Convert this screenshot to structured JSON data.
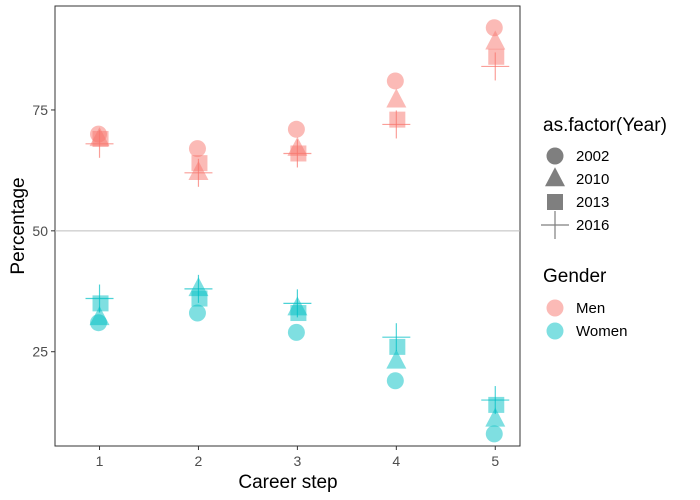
{
  "chart_data": {
    "type": "scatter",
    "xlabel": "Career step",
    "ylabel": "Percentage",
    "x_ticks": [
      "1",
      "2",
      "3",
      "4",
      "5"
    ],
    "y_ticks": [
      25,
      50,
      75
    ],
    "xlim": [
      0.55,
      5.25
    ],
    "ylim": [
      5.5,
      96.5
    ],
    "reference_line_y": 50,
    "grid": false,
    "legend_position": "right",
    "colors": {
      "Men": "#F8766D",
      "Women": "#00BFC4",
      "shape_legend": "#7f7f7f"
    },
    "legends": {
      "shape": {
        "title": "as.factor(Year)",
        "entries": [
          "2002",
          "2010",
          "2013",
          "2016"
        ]
      },
      "color": {
        "title": "Gender",
        "entries": [
          "Men",
          "Women"
        ]
      }
    },
    "series": [
      {
        "gender": "Men",
        "year": "2002",
        "shape": "circle",
        "points": [
          [
            1,
            70
          ],
          [
            2,
            67
          ],
          [
            3,
            71
          ],
          [
            4,
            81
          ],
          [
            5,
            92
          ]
        ]
      },
      {
        "gender": "Men",
        "year": "2010",
        "shape": "triangle",
        "points": [
          [
            1,
            69
          ],
          [
            2,
            62
          ],
          [
            3,
            67
          ],
          [
            4,
            77
          ],
          [
            5,
            89
          ]
        ]
      },
      {
        "gender": "Men",
        "year": "2013",
        "shape": "square",
        "points": [
          [
            1,
            69
          ],
          [
            2,
            64
          ],
          [
            3,
            66
          ],
          [
            4,
            73
          ],
          [
            5,
            86
          ]
        ]
      },
      {
        "gender": "Men",
        "year": "2016",
        "shape": "plus",
        "points": [
          [
            1,
            68
          ],
          [
            2,
            62
          ],
          [
            3,
            66
          ],
          [
            4,
            72
          ],
          [
            5,
            84
          ]
        ]
      },
      {
        "gender": "Women",
        "year": "2002",
        "shape": "circle",
        "points": [
          [
            1,
            31
          ],
          [
            2,
            33
          ],
          [
            3,
            29
          ],
          [
            4,
            19
          ],
          [
            5,
            8
          ]
        ]
      },
      {
        "gender": "Women",
        "year": "2010",
        "shape": "triangle",
        "points": [
          [
            1,
            32
          ],
          [
            2,
            38
          ],
          [
            3,
            34
          ],
          [
            4,
            23
          ],
          [
            5,
            11
          ]
        ]
      },
      {
        "gender": "Women",
        "year": "2013",
        "shape": "square",
        "points": [
          [
            1,
            35
          ],
          [
            2,
            36
          ],
          [
            3,
            33
          ],
          [
            4,
            26
          ],
          [
            5,
            14
          ]
        ]
      },
      {
        "gender": "Women",
        "year": "2016",
        "shape": "plus",
        "points": [
          [
            1,
            36
          ],
          [
            2,
            38
          ],
          [
            3,
            35
          ],
          [
            4,
            28
          ],
          [
            5,
            15
          ]
        ]
      }
    ]
  }
}
